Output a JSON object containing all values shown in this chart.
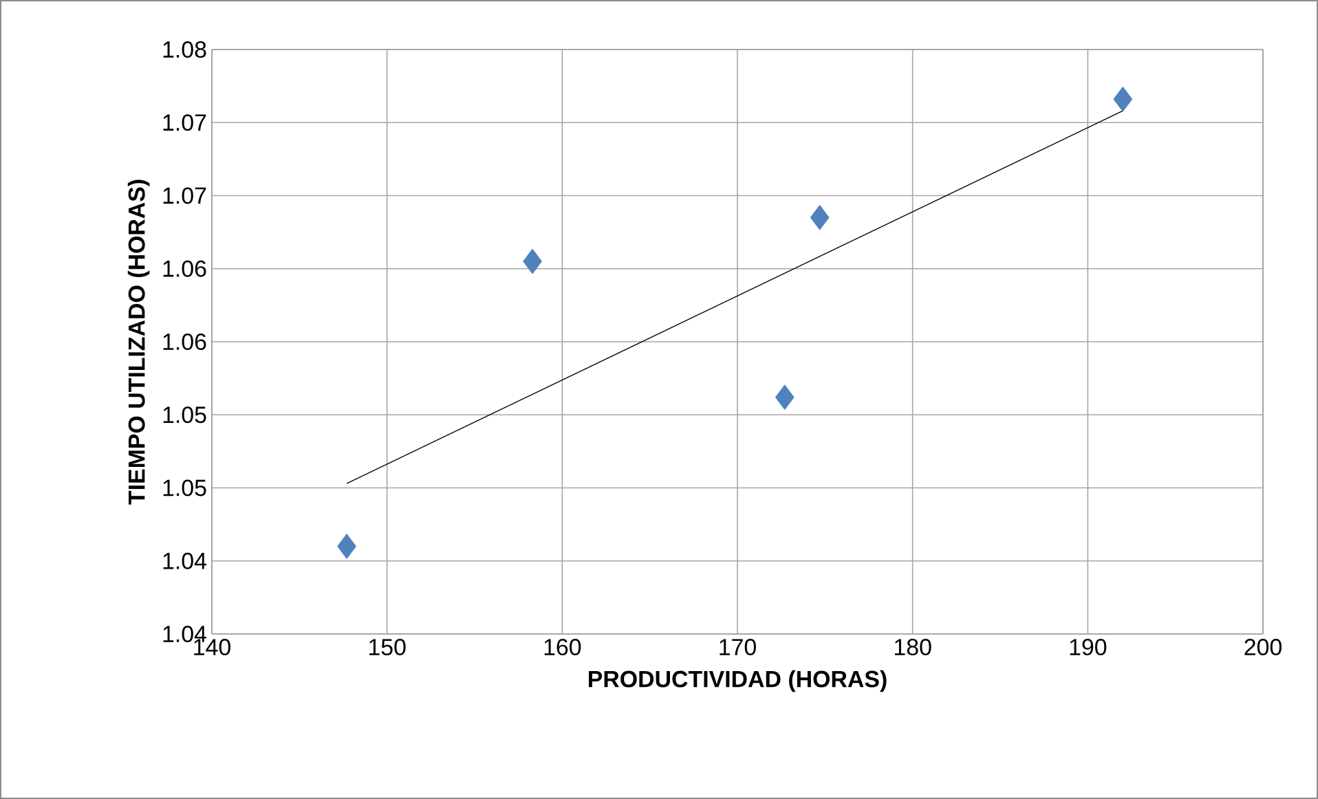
{
  "chart_data": {
    "type": "scatter",
    "xlabel": "PRODUCTIVIDAD (HORAS)",
    "ylabel": "TIEMPO UTILIZADO (HORAS)",
    "xlim": [
      140,
      200
    ],
    "xticks": [
      140,
      150,
      160,
      170,
      180,
      190,
      200
    ],
    "ylim": [
      1.04,
      1.08
    ],
    "yticks": [
      1.04,
      {
        "value": 1.045,
        "label": "1.04"
      },
      1.05,
      {
        "value": 1.055,
        "label": "1.05"
      },
      1.06,
      {
        "value": 1.065,
        "label": "1.06"
      },
      1.07,
      {
        "value": 1.075,
        "label": "1.07"
      },
      1.08
    ],
    "grid": true,
    "marker": "diamond",
    "series": [
      {
        "color": "#4f81bd",
        "x": [
          147.7,
          158.3,
          172.7,
          174.7,
          192.0
        ],
        "values": [
          1.046,
          1.0655,
          1.0562,
          1.0685,
          1.0766
        ]
      },
      {
        "type": "line",
        "color": "#000000",
        "marker": "none",
        "x": [
          147.7,
          192.0
        ],
        "values": [
          1.0503,
          1.0758
        ]
      }
    ]
  }
}
